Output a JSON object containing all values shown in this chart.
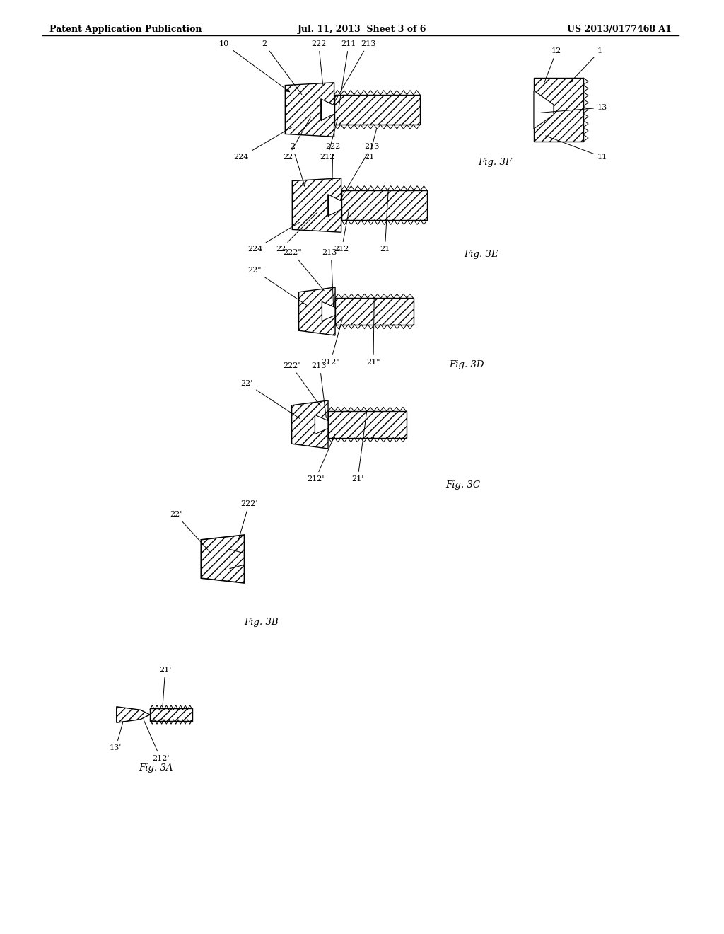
{
  "bg_color": "#ffffff",
  "header_left": "Patent Application Publication",
  "header_mid": "Jul. 11, 2013  Sheet 3 of 6",
  "header_right": "US 2013/0177468 A1",
  "fig_labels": [
    "Fig. 3A",
    "Fig. 3B",
    "Fig. 3C",
    "Fig. 3D",
    "Fig. 3E",
    "Fig. 3F"
  ],
  "hatch_pattern": "///",
  "line_color": "#000000",
  "hatch_color": "#000000",
  "face_color": "#ffffff"
}
